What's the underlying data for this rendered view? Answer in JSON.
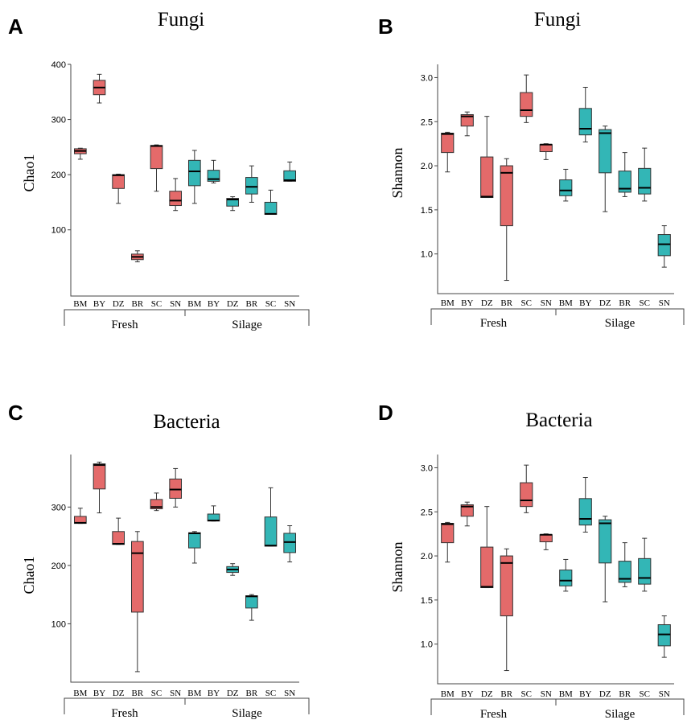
{
  "colors": {
    "fresh": "#E46A6A",
    "silage": "#33B6B6"
  },
  "chart_data": [
    {
      "panel": "A",
      "type": "box",
      "title": "Fungi",
      "ylabel": "Chao1",
      "xlabel": "",
      "ylim": [
        -20,
        400
      ],
      "yticks": [
        100,
        200,
        300,
        400
      ],
      "categories": [
        "BM",
        "BY",
        "DZ",
        "BR",
        "SC",
        "SN",
        "BM",
        "BY",
        "DZ",
        "BR",
        "SC",
        "SN"
      ],
      "groups": [
        {
          "name": "Fresh",
          "from": 0,
          "to": 5
        },
        {
          "name": "Silage",
          "from": 6,
          "to": 11
        }
      ],
      "boxes": [
        {
          "min": 228,
          "q1": 238,
          "median": 243,
          "q3": 247,
          "max": 248
        },
        {
          "min": 330,
          "q1": 345,
          "median": 358,
          "q3": 371,
          "max": 382
        },
        {
          "min": 148,
          "q1": 175,
          "median": 199,
          "q3": 200,
          "max": 201
        },
        {
          "min": 42,
          "q1": 46,
          "median": 51,
          "q3": 56,
          "max": 62
        },
        {
          "min": 170,
          "q1": 211,
          "median": 252,
          "q3": 253,
          "max": 254
        },
        {
          "min": 135,
          "q1": 144,
          "median": 153,
          "q3": 170,
          "max": 193
        },
        {
          "min": 148,
          "q1": 180,
          "median": 206,
          "q3": 226,
          "max": 244
        },
        {
          "min": 185,
          "q1": 188,
          "median": 192,
          "q3": 208,
          "max": 226
        },
        {
          "min": 135,
          "q1": 143,
          "median": 155,
          "q3": 157,
          "max": 160
        },
        {
          "min": 150,
          "q1": 165,
          "median": 178,
          "q3": 195,
          "max": 216
        },
        {
          "min": 128,
          "q1": 128,
          "median": 129,
          "q3": 150,
          "max": 172
        },
        {
          "min": 188,
          "q1": 188,
          "median": 190,
          "q3": 207,
          "max": 223
        }
      ]
    },
    {
      "panel": "B",
      "type": "box",
      "title": "Fungi",
      "ylabel": "Shannon",
      "xlabel": "",
      "ylim": [
        0.55,
        3.15
      ],
      "yticks": [
        "1.0",
        "1.5",
        "2.0",
        "2.5",
        "3.0"
      ],
      "categories": [
        "BM",
        "BY",
        "DZ",
        "BR",
        "SC",
        "SN",
        "BM",
        "BY",
        "DZ",
        "BR",
        "SC",
        "SN"
      ],
      "groups": [
        {
          "name": "Fresh",
          "from": 0,
          "to": 5
        },
        {
          "name": "Silage",
          "from": 6,
          "to": 11
        }
      ],
      "boxes": [
        {
          "min": 1.93,
          "q1": 2.15,
          "median": 2.36,
          "q3": 2.37,
          "max": 2.38
        },
        {
          "min": 2.34,
          "q1": 2.45,
          "median": 2.56,
          "q3": 2.58,
          "max": 2.61
        },
        {
          "min": 1.64,
          "q1": 1.64,
          "median": 1.65,
          "q3": 2.1,
          "max": 2.56
        },
        {
          "min": 0.7,
          "q1": 1.32,
          "median": 1.92,
          "q3": 2.0,
          "max": 2.08
        },
        {
          "min": 2.49,
          "q1": 2.56,
          "median": 2.63,
          "q3": 2.83,
          "max": 3.03
        },
        {
          "min": 2.07,
          "q1": 2.16,
          "median": 2.24,
          "q3": 2.24,
          "max": 2.25
        },
        {
          "min": 1.6,
          "q1": 1.66,
          "median": 1.72,
          "q3": 1.84,
          "max": 1.96
        },
        {
          "min": 2.27,
          "q1": 2.35,
          "median": 2.42,
          "q3": 2.65,
          "max": 2.89
        },
        {
          "min": 1.48,
          "q1": 1.92,
          "median": 2.37,
          "q3": 2.41,
          "max": 2.45
        },
        {
          "min": 1.65,
          "q1": 1.7,
          "median": 1.74,
          "q3": 1.94,
          "max": 2.15
        },
        {
          "min": 1.6,
          "q1": 1.68,
          "median": 1.75,
          "q3": 1.97,
          "max": 2.2
        },
        {
          "min": 0.85,
          "q1": 0.98,
          "median": 1.11,
          "q3": 1.22,
          "max": 1.32
        }
      ]
    },
    {
      "panel": "C",
      "type": "box",
      "title": "Bacteria",
      "ylabel": "Chao1",
      "xlabel": "",
      "ylim": [
        0,
        390
      ],
      "yticks": [
        100,
        200,
        300
      ],
      "categories": [
        "BM",
        "BY",
        "DZ",
        "BR",
        "SC",
        "SN",
        "BM",
        "BY",
        "DZ",
        "BR",
        "SC",
        "SN"
      ],
      "groups": [
        {
          "name": "Fresh",
          "from": 0,
          "to": 5
        },
        {
          "name": "Silage",
          "from": 6,
          "to": 11
        }
      ],
      "boxes": [
        {
          "min": 272,
          "q1": 272,
          "median": 273,
          "q3": 284,
          "max": 298
        },
        {
          "min": 290,
          "q1": 331,
          "median": 372,
          "q3": 374,
          "max": 377
        },
        {
          "min": 236,
          "q1": 236,
          "median": 237,
          "q3": 258,
          "max": 281
        },
        {
          "min": 18,
          "q1": 120,
          "median": 221,
          "q3": 241,
          "max": 258
        },
        {
          "min": 294,
          "q1": 297,
          "median": 300,
          "q3": 313,
          "max": 324
        },
        {
          "min": 300,
          "q1": 315,
          "median": 330,
          "q3": 348,
          "max": 366
        },
        {
          "min": 204,
          "q1": 230,
          "median": 255,
          "q3": 256,
          "max": 258
        },
        {
          "min": 276,
          "q1": 276,
          "median": 277,
          "q3": 288,
          "max": 302
        },
        {
          "min": 183,
          "q1": 188,
          "median": 193,
          "q3": 198,
          "max": 203
        },
        {
          "min": 106,
          "q1": 127,
          "median": 147,
          "q3": 148,
          "max": 150
        },
        {
          "min": 233,
          "q1": 233,
          "median": 234,
          "q3": 283,
          "max": 333
        },
        {
          "min": 206,
          "q1": 222,
          "median": 240,
          "q3": 255,
          "max": 268
        }
      ]
    },
    {
      "panel": "D",
      "type": "box",
      "title": "Bacteria",
      "ylabel": "Shannon",
      "xlabel": "",
      "ylim": [
        0.55,
        3.15
      ],
      "yticks": [
        "1.0",
        "1.5",
        "2.0",
        "2.5",
        "3.0"
      ],
      "categories": [
        "BM",
        "BY",
        "DZ",
        "BR",
        "SC",
        "SN",
        "BM",
        "BY",
        "DZ",
        "BR",
        "SC",
        "SN"
      ],
      "groups": [
        {
          "name": "Fresh",
          "from": 0,
          "to": 5
        },
        {
          "name": "Silage",
          "from": 6,
          "to": 11
        }
      ],
      "boxes": [
        {
          "min": 1.93,
          "q1": 2.15,
          "median": 2.36,
          "q3": 2.37,
          "max": 2.38
        },
        {
          "min": 2.34,
          "q1": 2.45,
          "median": 2.56,
          "q3": 2.58,
          "max": 2.61
        },
        {
          "min": 1.64,
          "q1": 1.64,
          "median": 1.65,
          "q3": 2.1,
          "max": 2.56
        },
        {
          "min": 0.7,
          "q1": 1.32,
          "median": 1.92,
          "q3": 2.0,
          "max": 2.08
        },
        {
          "min": 2.49,
          "q1": 2.56,
          "median": 2.63,
          "q3": 2.83,
          "max": 3.03
        },
        {
          "min": 2.07,
          "q1": 2.16,
          "median": 2.24,
          "q3": 2.24,
          "max": 2.25
        },
        {
          "min": 1.6,
          "q1": 1.66,
          "median": 1.72,
          "q3": 1.84,
          "max": 1.96
        },
        {
          "min": 2.27,
          "q1": 2.35,
          "median": 2.42,
          "q3": 2.65,
          "max": 2.89
        },
        {
          "min": 1.48,
          "q1": 1.92,
          "median": 2.37,
          "q3": 2.41,
          "max": 2.45
        },
        {
          "min": 1.65,
          "q1": 1.7,
          "median": 1.74,
          "q3": 1.94,
          "max": 2.15
        },
        {
          "min": 1.6,
          "q1": 1.68,
          "median": 1.75,
          "q3": 1.97,
          "max": 2.2
        },
        {
          "min": 0.85,
          "q1": 0.98,
          "median": 1.11,
          "q3": 1.22,
          "max": 1.32
        }
      ]
    }
  ]
}
